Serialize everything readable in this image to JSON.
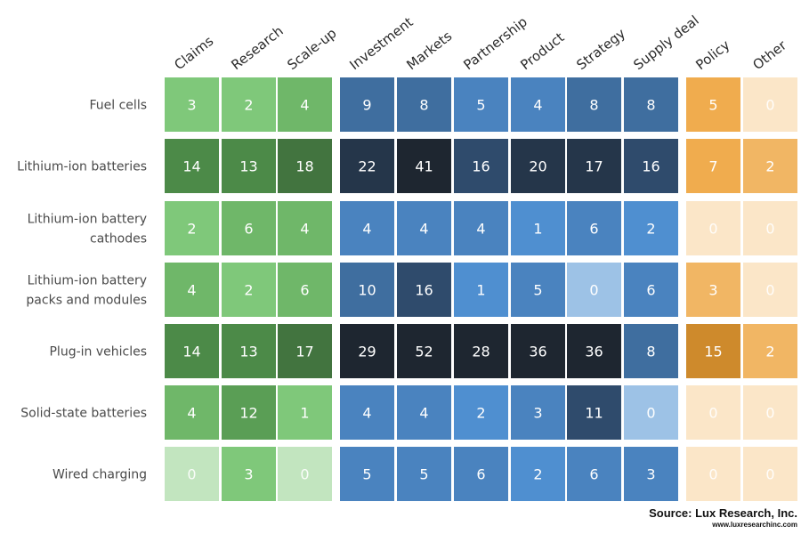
{
  "chart_data": {
    "type": "heatmap",
    "columns": [
      "Claims",
      "Research",
      "Scale-up",
      "Investment",
      "Markets",
      "Partnership",
      "Product",
      "Strategy",
      "Supply deal",
      "Policy",
      "Other"
    ],
    "column_groups": [
      {
        "columns": [
          "Claims",
          "Research",
          "Scale-up"
        ],
        "color": "green"
      },
      {
        "columns": [
          "Investment",
          "Markets",
          "Partnership",
          "Product",
          "Strategy",
          "Supply deal"
        ],
        "color": "blue"
      },
      {
        "columns": [
          "Policy",
          "Other"
        ],
        "color": "orange"
      }
    ],
    "rows": [
      {
        "label": [
          "Fuel cells"
        ],
        "values": [
          3,
          2,
          4,
          9,
          8,
          5,
          4,
          8,
          8,
          5,
          0
        ]
      },
      {
        "label": [
          "Lithium-ion batteries"
        ],
        "values": [
          14,
          13,
          18,
          22,
          41,
          16,
          20,
          17,
          16,
          7,
          2
        ]
      },
      {
        "label": [
          "Lithium-ion battery",
          "cathodes"
        ],
        "values": [
          2,
          6,
          4,
          4,
          4,
          4,
          1,
          6,
          2,
          0,
          0
        ]
      },
      {
        "label": [
          "Lithium-ion battery",
          "packs and modules"
        ],
        "values": [
          4,
          2,
          6,
          10,
          16,
          1,
          5,
          0,
          6,
          3,
          0
        ]
      },
      {
        "label": [
          "Plug-in vehicles"
        ],
        "values": [
          14,
          13,
          17,
          29,
          52,
          28,
          36,
          36,
          8,
          15,
          2
        ]
      },
      {
        "label": [
          "Solid-state batteries"
        ],
        "values": [
          4,
          12,
          1,
          4,
          4,
          2,
          3,
          11,
          0,
          0,
          0
        ]
      },
      {
        "label": [
          "Wired charging"
        ],
        "values": [
          0,
          3,
          0,
          5,
          5,
          6,
          2,
          6,
          3,
          0,
          0
        ]
      }
    ]
  },
  "source": {
    "line": "Source: Lux Research, Inc.",
    "url": "www.luxresearchinc.com"
  },
  "colors": {
    "green": [
      "#c2e5bf",
      "#7fc87a",
      "#6fb769",
      "#5a9e55",
      "#4c8a48",
      "#42743f"
    ],
    "blue": [
      "#9dc2e6",
      "#4f8fd0",
      "#4a83bf",
      "#3f6e9f",
      "#2f4b6c",
      "#25364a",
      "#1e2630"
    ],
    "orange": [
      "#fbe6c8",
      "#f1b664",
      "#f0ac4e",
      "#ce8a2c"
    ]
  }
}
